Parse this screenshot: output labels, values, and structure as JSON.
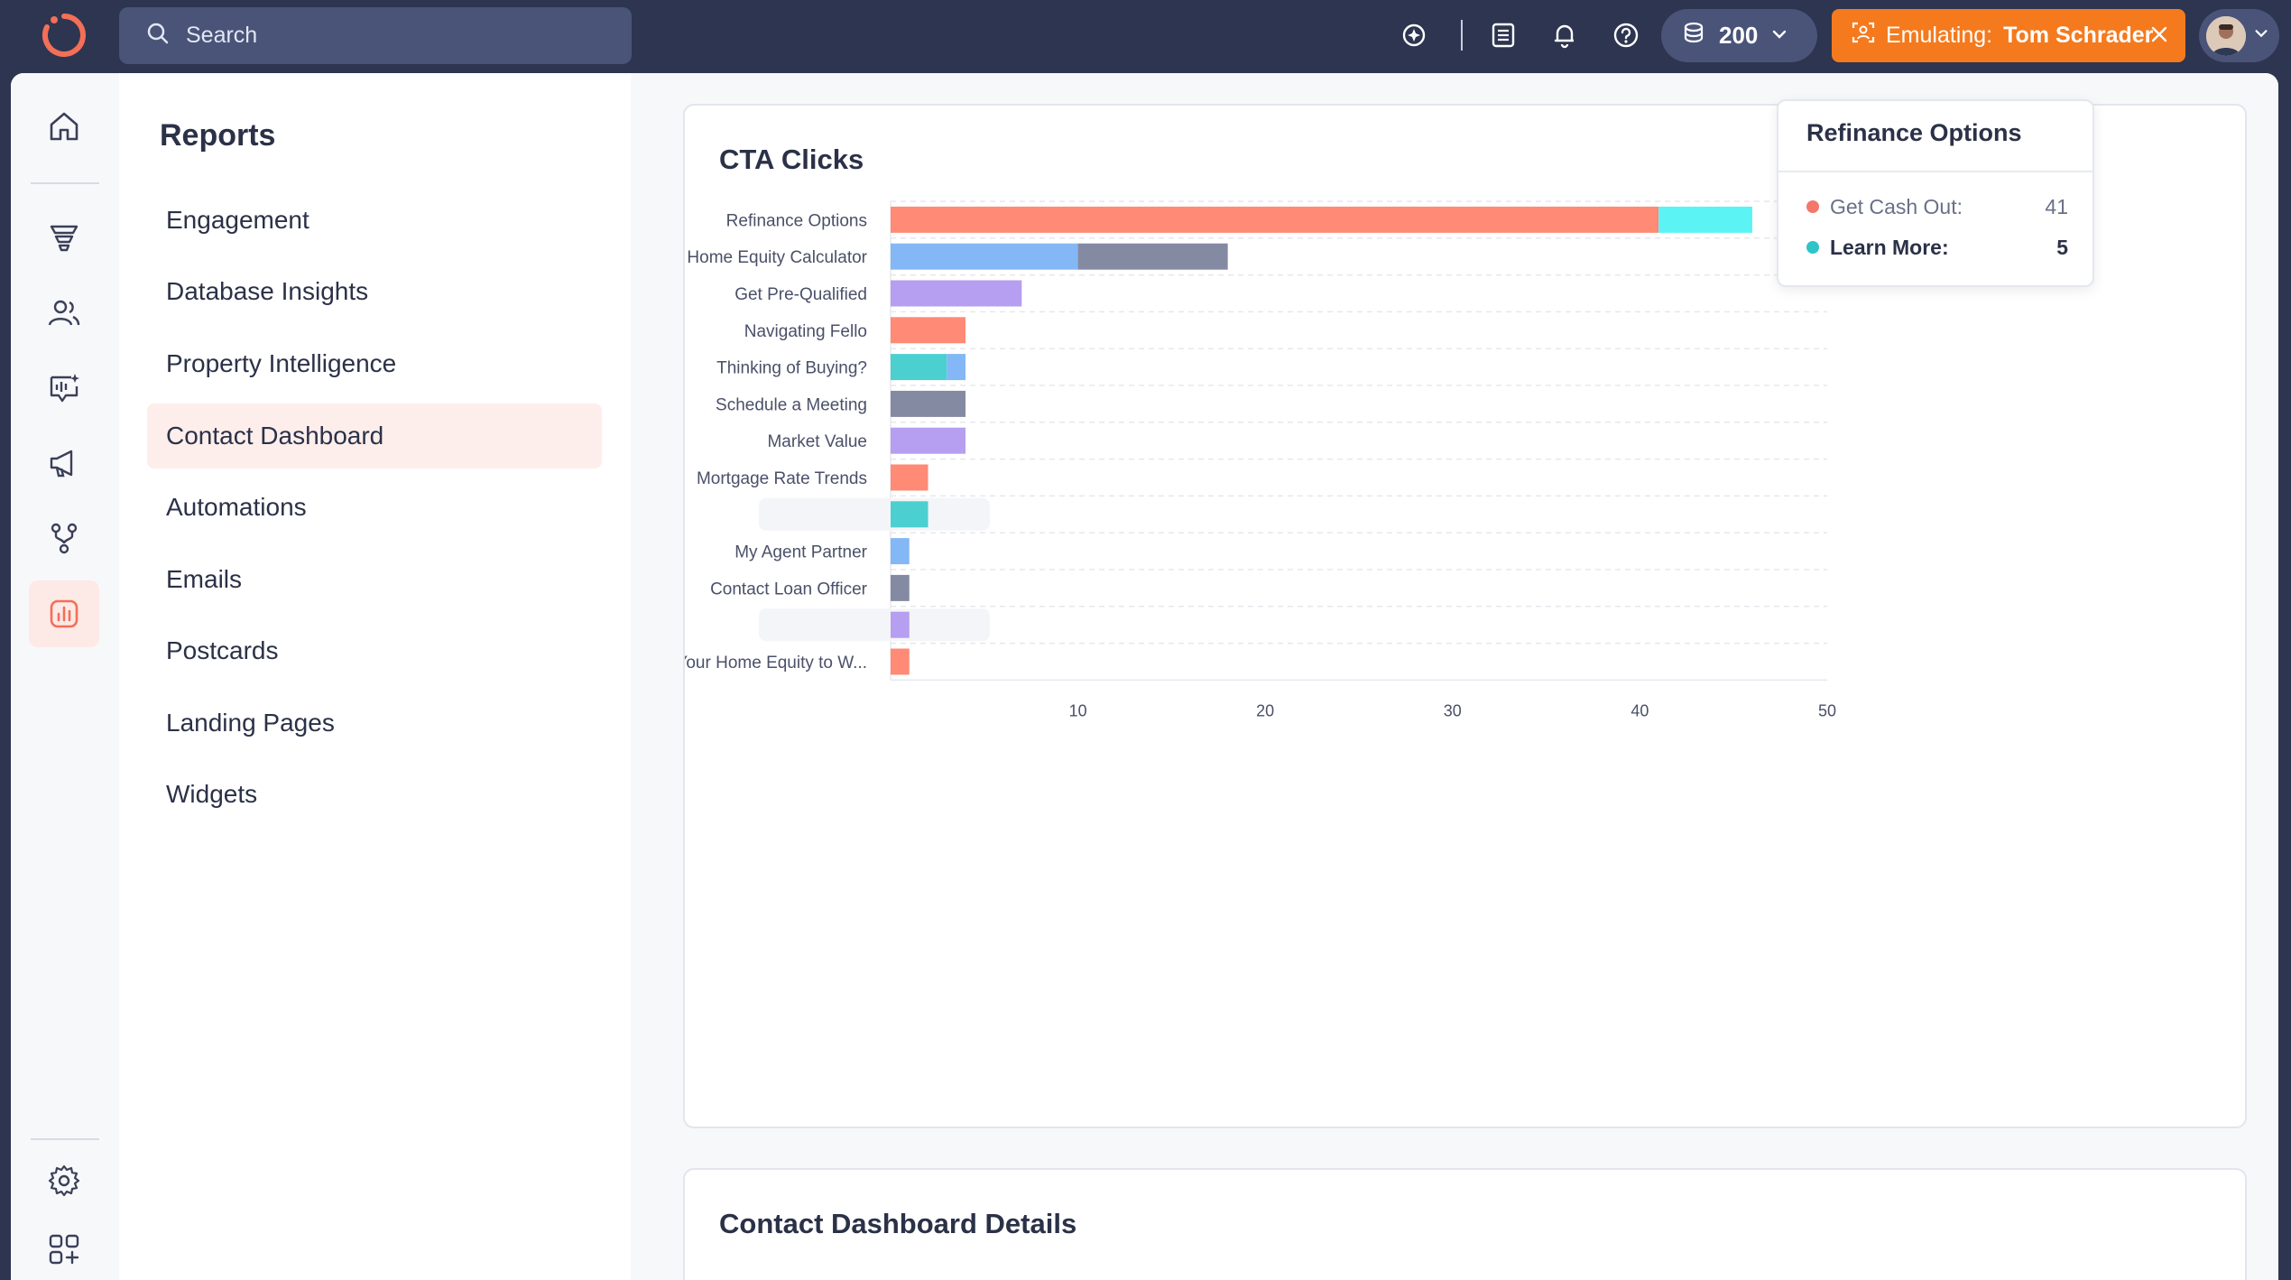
{
  "search": {
    "placeholder": "Search"
  },
  "header": {
    "credits": "200",
    "emulating_label": "Emulating:",
    "emulating_user": "Tom Schrader"
  },
  "subnav": {
    "title": "Reports",
    "items": [
      {
        "label": "Engagement",
        "active": false
      },
      {
        "label": "Database Insights",
        "active": false
      },
      {
        "label": "Property Intelligence",
        "active": false
      },
      {
        "label": "Contact Dashboard",
        "active": true
      },
      {
        "label": "Automations",
        "active": false
      },
      {
        "label": "Emails",
        "active": false
      },
      {
        "label": "Postcards",
        "active": false
      },
      {
        "label": "Landing Pages",
        "active": false
      },
      {
        "label": "Widgets",
        "active": false
      }
    ]
  },
  "cta_card": {
    "title": "CTA Clicks"
  },
  "details_card": {
    "title": "Contact Dashboard Details"
  },
  "tooltip": {
    "title": "Refinance Options",
    "rows": [
      {
        "name": "Get Cash Out:",
        "value": "41",
        "color": "#f3786a"
      },
      {
        "name": "Learn More:",
        "value": "5",
        "color": "#2ec4c8"
      }
    ]
  },
  "chart_data": {
    "type": "bar",
    "orientation": "horizontal",
    "stacked": true,
    "xlim": [
      0,
      50
    ],
    "x_ticks": [
      "10",
      "20",
      "30",
      "40",
      "50"
    ],
    "grid": true,
    "categories": [
      {
        "label": "Refinance Options",
        "segments": [
          {
            "value": 41,
            "color": "#ff8a75"
          },
          {
            "value": 5,
            "color": "#5cf3f5"
          }
        ]
      },
      {
        "label": "Home Equity Calculator",
        "segments": [
          {
            "value": 10,
            "color": "#84b7f5"
          },
          {
            "value": 8,
            "color": "#858aa3"
          }
        ]
      },
      {
        "label": "Get Pre-Qualified",
        "segments": [
          {
            "value": 7,
            "color": "#b69ef0"
          }
        ]
      },
      {
        "label": "Navigating Fello",
        "segments": [
          {
            "value": 4,
            "color": "#ff8a75"
          }
        ]
      },
      {
        "label": "Thinking of Buying?",
        "segments": [
          {
            "value": 3,
            "color": "#4ccfcf"
          },
          {
            "value": 1,
            "color": "#84b7f5"
          }
        ]
      },
      {
        "label": "Schedule a Meeting",
        "segments": [
          {
            "value": 4,
            "color": "#858aa3"
          }
        ]
      },
      {
        "label": "Market Value",
        "segments": [
          {
            "value": 4,
            "color": "#b69ef0"
          }
        ]
      },
      {
        "label": "Mortgage Rate Trends",
        "segments": [
          {
            "value": 2,
            "color": "#ff8a75"
          }
        ]
      },
      {
        "label": "",
        "segments": [
          {
            "value": 2,
            "color": "#4ccfcf"
          }
        ]
      },
      {
        "label": "My Agent Partner",
        "segments": [
          {
            "value": 1,
            "color": "#84b7f5"
          }
        ]
      },
      {
        "label": "Contact Loan Officer",
        "segments": [
          {
            "value": 1,
            "color": "#858aa3"
          }
        ]
      },
      {
        "label": "",
        "segments": [
          {
            "value": 1,
            "color": "#b69ef0"
          }
        ]
      },
      {
        "label": "Put Your Home Equity to W...",
        "segments": [
          {
            "value": 1,
            "color": "#ff8a75"
          }
        ]
      }
    ]
  }
}
